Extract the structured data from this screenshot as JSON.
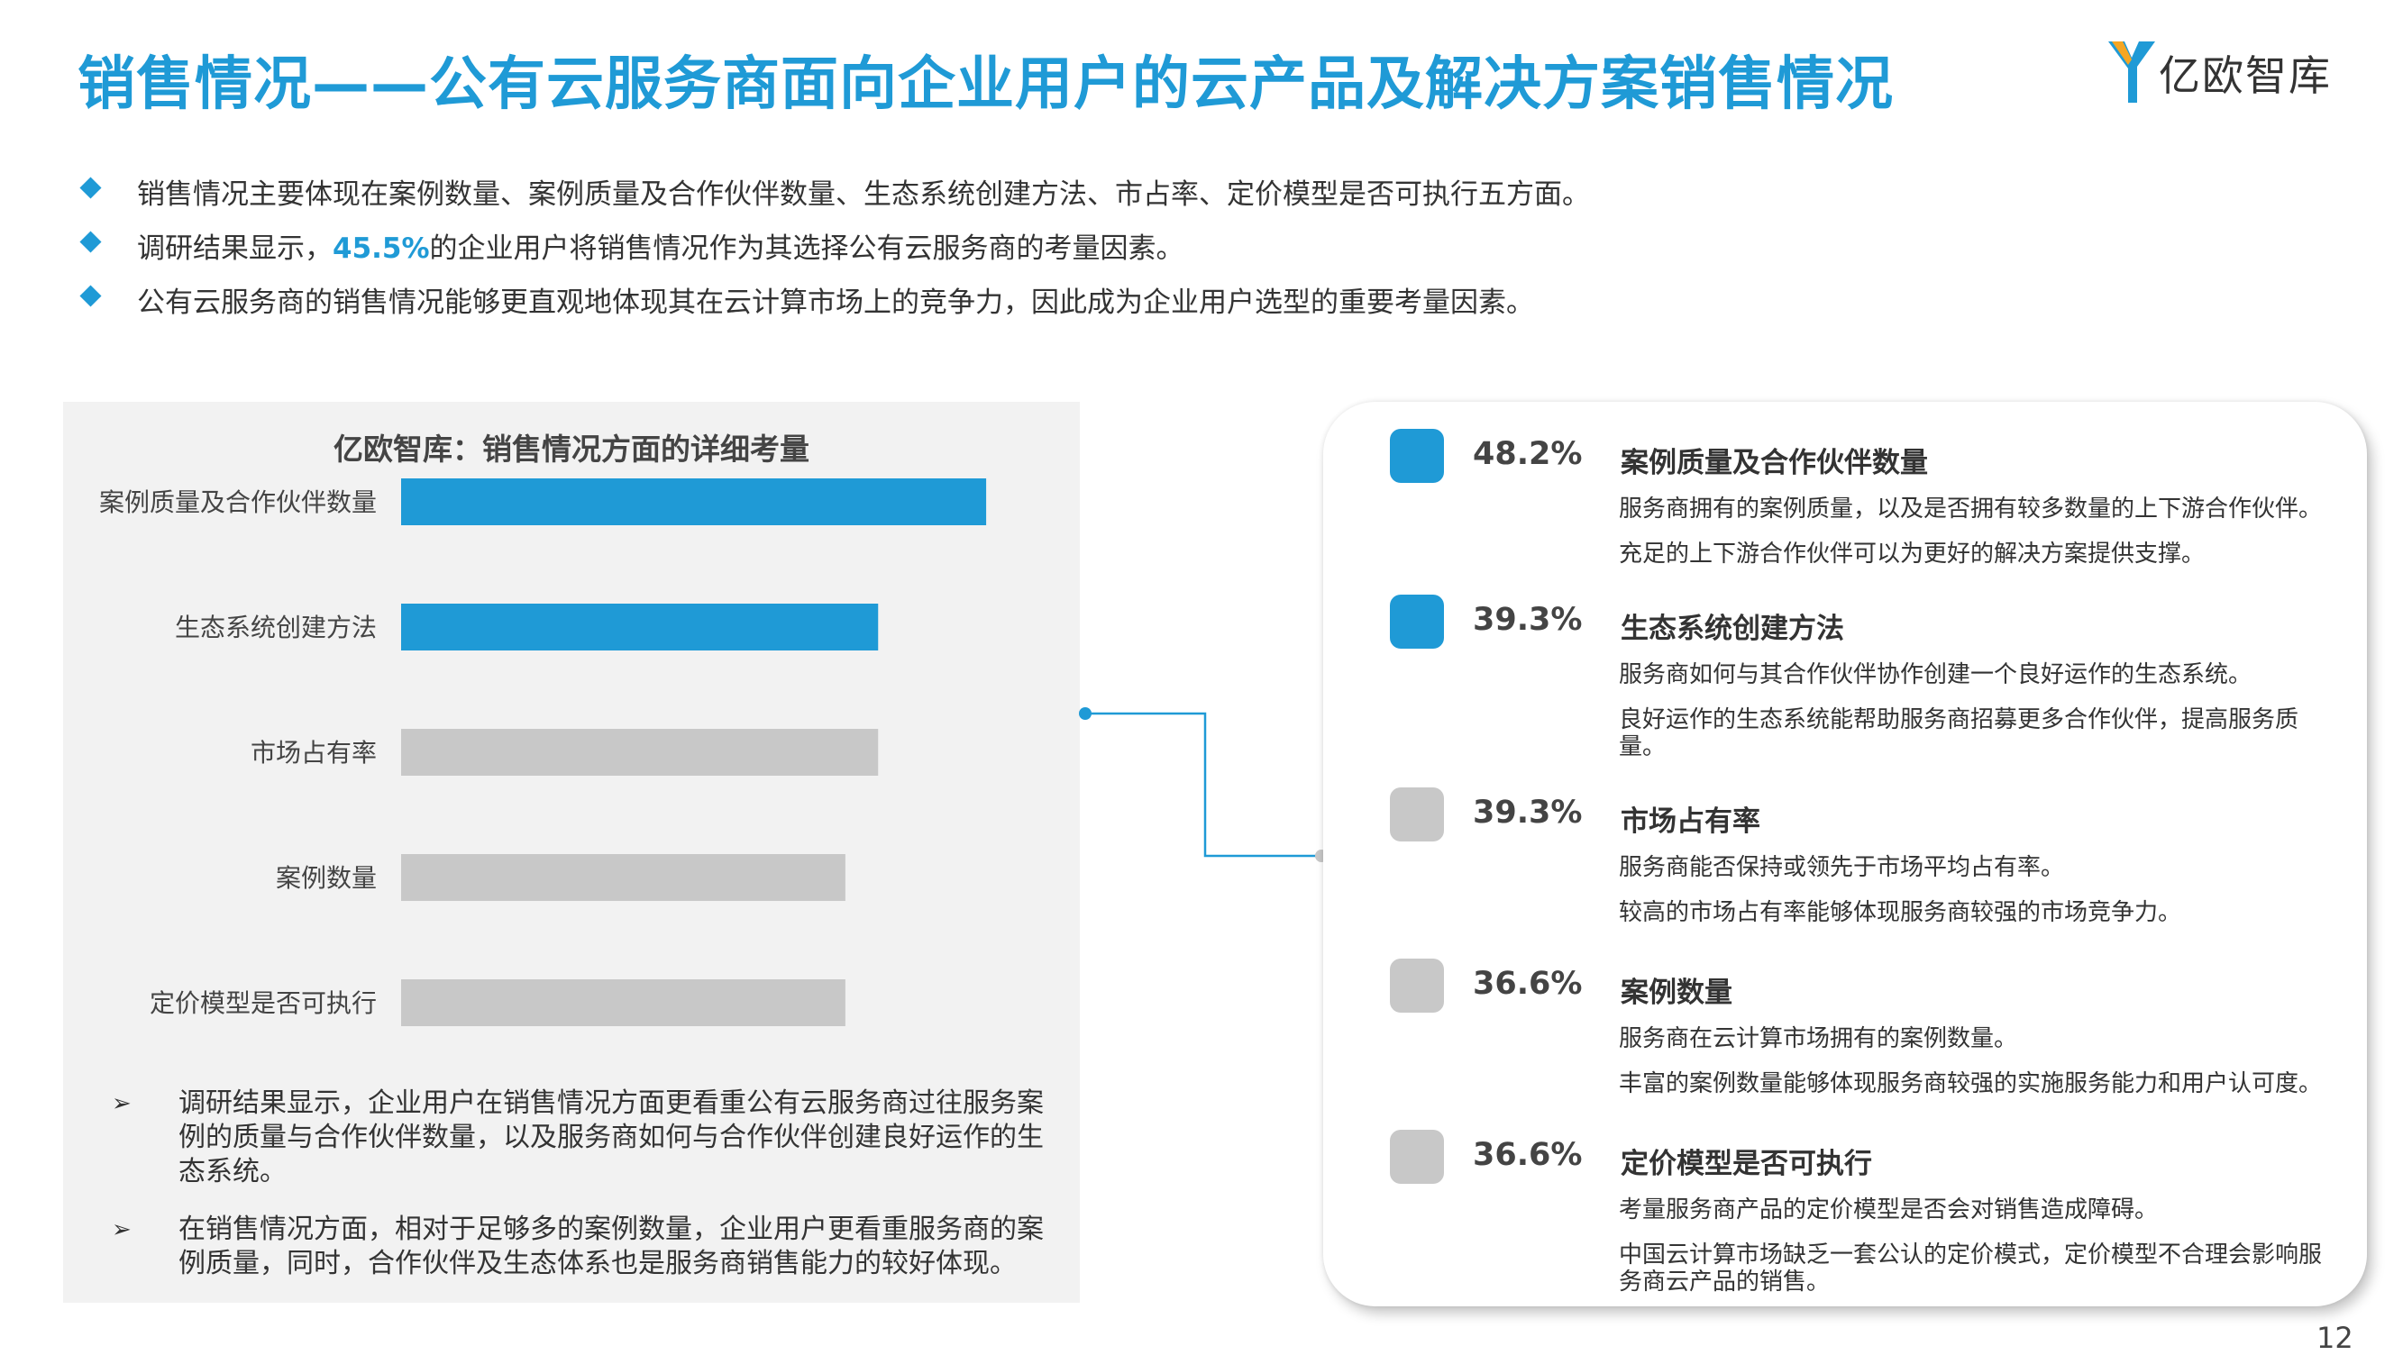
{
  "title": "销售情况——公有云服务商面向企业用户的云产品及解决方案销售情况",
  "logo": {
    "text": "亿欧智库"
  },
  "bullets": [
    {
      "text": "销售情况主要体现在案例数量、案例质量及合作伙伴数量、生态系统创建方法、市占率、定价模型是否可执行五方面。"
    },
    {
      "pre": "调研结果显示，",
      "highlight": "45.5%",
      "post": "的企业用户将销售情况作为其选择公有云服务商的考量因素。"
    },
    {
      "text": "公有云服务商的销售情况能够更直观地体现其在云计算市场上的竞争力，因此成为企业用户选型的重要考量因素。"
    }
  ],
  "chart_data": {
    "type": "bar",
    "orientation": "horizontal",
    "title": "亿欧智库：销售情况方面的详细考量",
    "categories": [
      "案例质量及合作伙伴数量",
      "生态系统创建方法",
      "市场占有率",
      "案例数量",
      "定价模型是否可执行"
    ],
    "values": [
      48.2,
      39.3,
      39.3,
      36.6,
      36.6
    ],
    "unit": "%",
    "xlim": [
      0,
      60
    ],
    "grid": false,
    "bar_colors": [
      "#1f9ad6",
      "#1f9ad6",
      "#c8c8c8",
      "#c8c8c8",
      "#c8c8c8"
    ]
  },
  "notes": [
    "调研结果显示，企业用户在销售情况方面更看重公有云服务商过往服务案例的质量与合作伙伴数量，以及服务商如何与合作伙伴创建良好运作的生态系统。",
    "在销售情况方面，相对于足够多的案例数量，企业用户更看重服务商的案例质量，同时，合作伙伴及生态体系也是服务商销售能力的较好体现。"
  ],
  "details": [
    {
      "pct": "48.2%",
      "name": "案例质量及合作伙伴数量",
      "color": "#1f9ad6",
      "desc1": "服务商拥有的案例质量，以及是否拥有较多数量的上下游合作伙伴。",
      "desc2": "充足的上下游合作伙伴可以为更好的解决方案提供支撑。"
    },
    {
      "pct": "39.3%",
      "name": "生态系统创建方法",
      "color": "#1f9ad6",
      "desc1": "服务商如何与其合作伙伴协作创建一个良好运作的生态系统。",
      "desc2": "良好运作的生态系统能帮助服务商招募更多合作伙伴，提高服务质量。"
    },
    {
      "pct": "39.3%",
      "name": "市场占有率",
      "color": "#c8c8c8",
      "desc1": "服务商能否保持或领先于市场平均占有率。",
      "desc2": "较高的市场占有率能够体现服务商较强的市场竞争力。"
    },
    {
      "pct": "36.6%",
      "name": "案例数量",
      "color": "#c8c8c8",
      "desc1": "服务商在云计算市场拥有的案例数量。",
      "desc2": "丰富的案例数量能够体现服务商较强的实施服务能力和用户认可度。"
    },
    {
      "pct": "36.6%",
      "name": "定价模型是否可执行",
      "color": "#c8c8c8",
      "desc1": "考量服务商产品的定价模型是否会对销售造成障碍。",
      "desc2": "中国云计算市场缺乏一套公认的定价模式，定价模型不合理会影响服务商云产品的销售。"
    }
  ],
  "page_number": "12",
  "colors": {
    "accent": "#1f9ad6",
    "gray_bar": "#c8c8c8",
    "panel_bg": "#f2f2f2"
  }
}
